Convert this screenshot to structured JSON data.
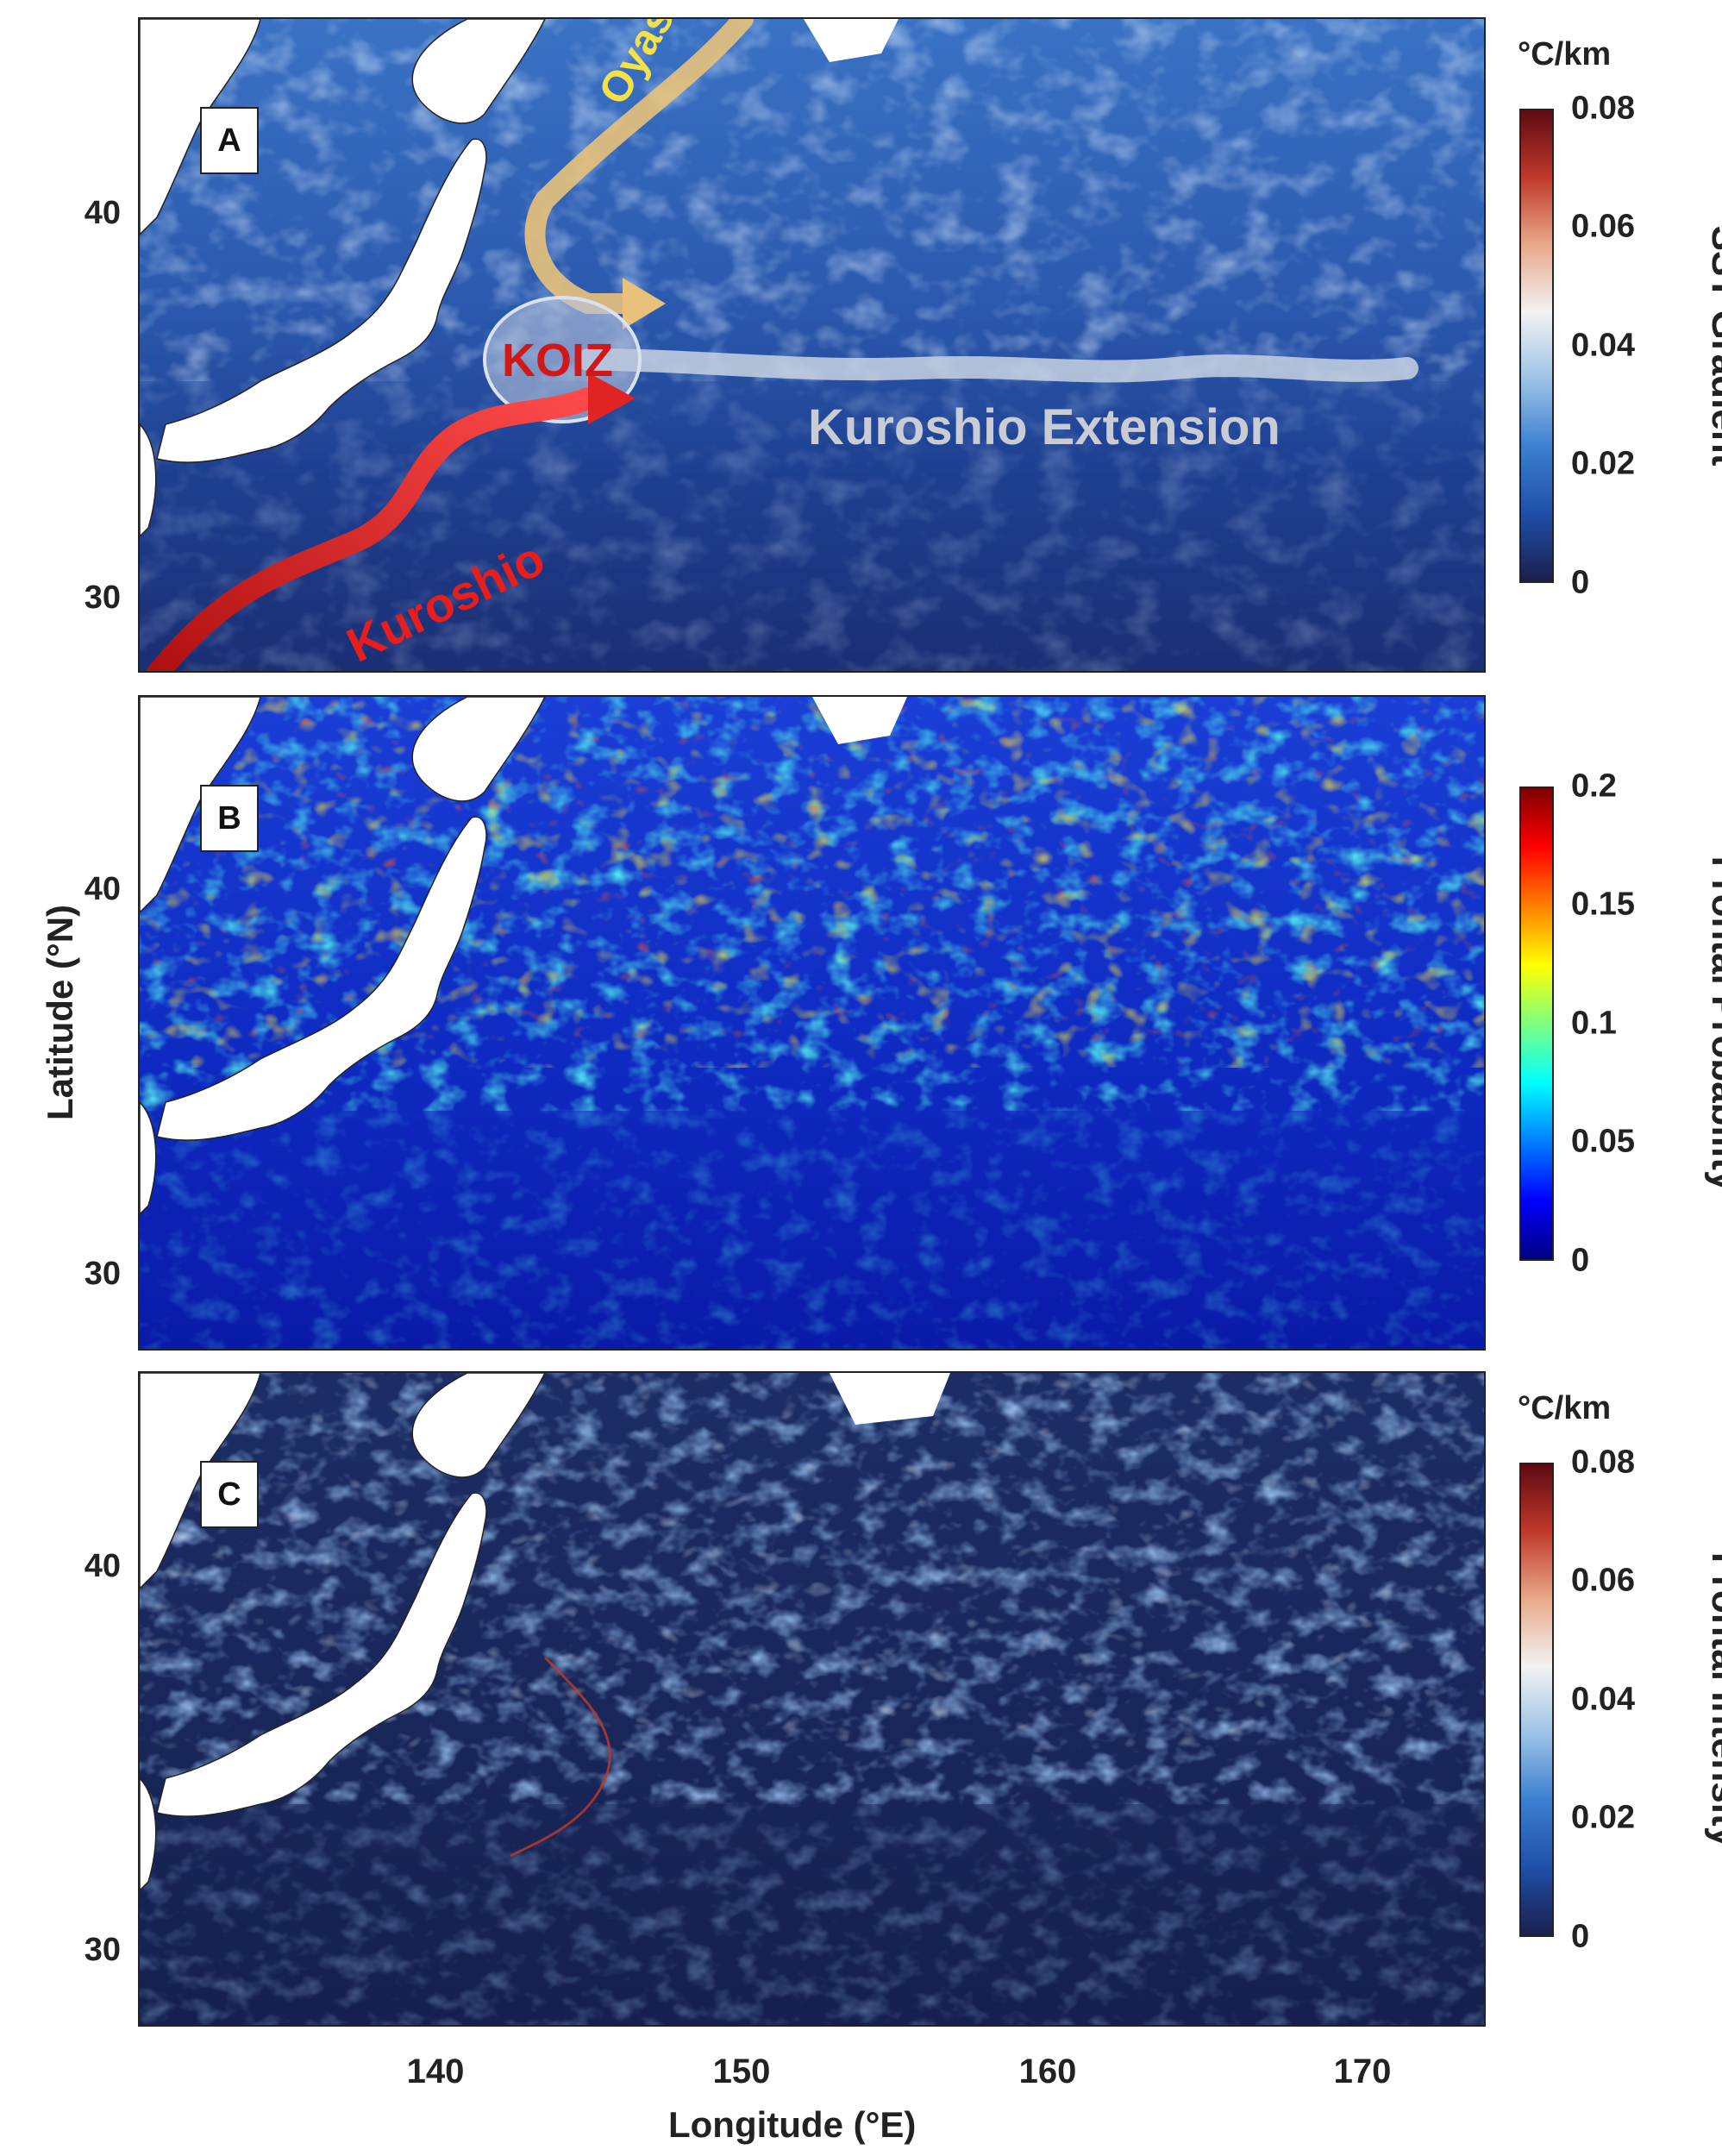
{
  "chart_data": {
    "type": "heatmap",
    "xlabel": "Longitude (°E)",
    "ylabel": "Latitude (°N)",
    "xlim": [
      130.5,
      174.5
    ],
    "ylim": [
      28,
      45
    ],
    "x_ticks": [
      "140",
      "150",
      "160",
      "170"
    ],
    "y_ticks": [
      "30",
      "40"
    ],
    "panels": [
      {
        "label": "A",
        "colorbar_title": "SST Gradient",
        "colorbar_unit": "°C/km",
        "colorbar_ticks": [
          "0.08",
          "0.06",
          "0.04",
          "0.02",
          "0"
        ],
        "colormap": [
          "#1a1f4d",
          "#1f4fa8",
          "#3b7fd1",
          "#9cc3e6",
          "#f2f2f2",
          "#e8a98a",
          "#c0392b",
          "#5e0a12"
        ],
        "annotations": [
          "Oyashio",
          "KOIZ",
          "Kuroshio Extension",
          "Kuroshio"
        ]
      },
      {
        "label": "B",
        "colorbar_title": "Frontal Probability",
        "colorbar_unit": "",
        "colorbar_ticks": [
          "0.2",
          "0.15",
          "0.1",
          "0.05",
          "0"
        ],
        "colormap": [
          "#00007f",
          "#0000ff",
          "#007fff",
          "#00ffff",
          "#7fff7f",
          "#ffff00",
          "#ff7f00",
          "#ff0000",
          "#7f0000"
        ],
        "annotations": []
      },
      {
        "label": "C",
        "colorbar_title": "Frontal Intensity",
        "colorbar_unit": "°C/km",
        "colorbar_ticks": [
          "0.08",
          "0.06",
          "0.04",
          "0.02",
          "0"
        ],
        "colormap": [
          "#1a1f4d",
          "#1f4fa8",
          "#3b7fd1",
          "#9cc3e6",
          "#f2f2f2",
          "#e8a98a",
          "#c0392b",
          "#5e0a12"
        ],
        "annotations": []
      }
    ]
  },
  "colors": {
    "land": "#ffffff",
    "kuroshio_arrow": "#e02424",
    "oyashio_arrow": "#e8c27a",
    "extension_band": "#b8c4d6",
    "koiz_text": "#d01818"
  }
}
